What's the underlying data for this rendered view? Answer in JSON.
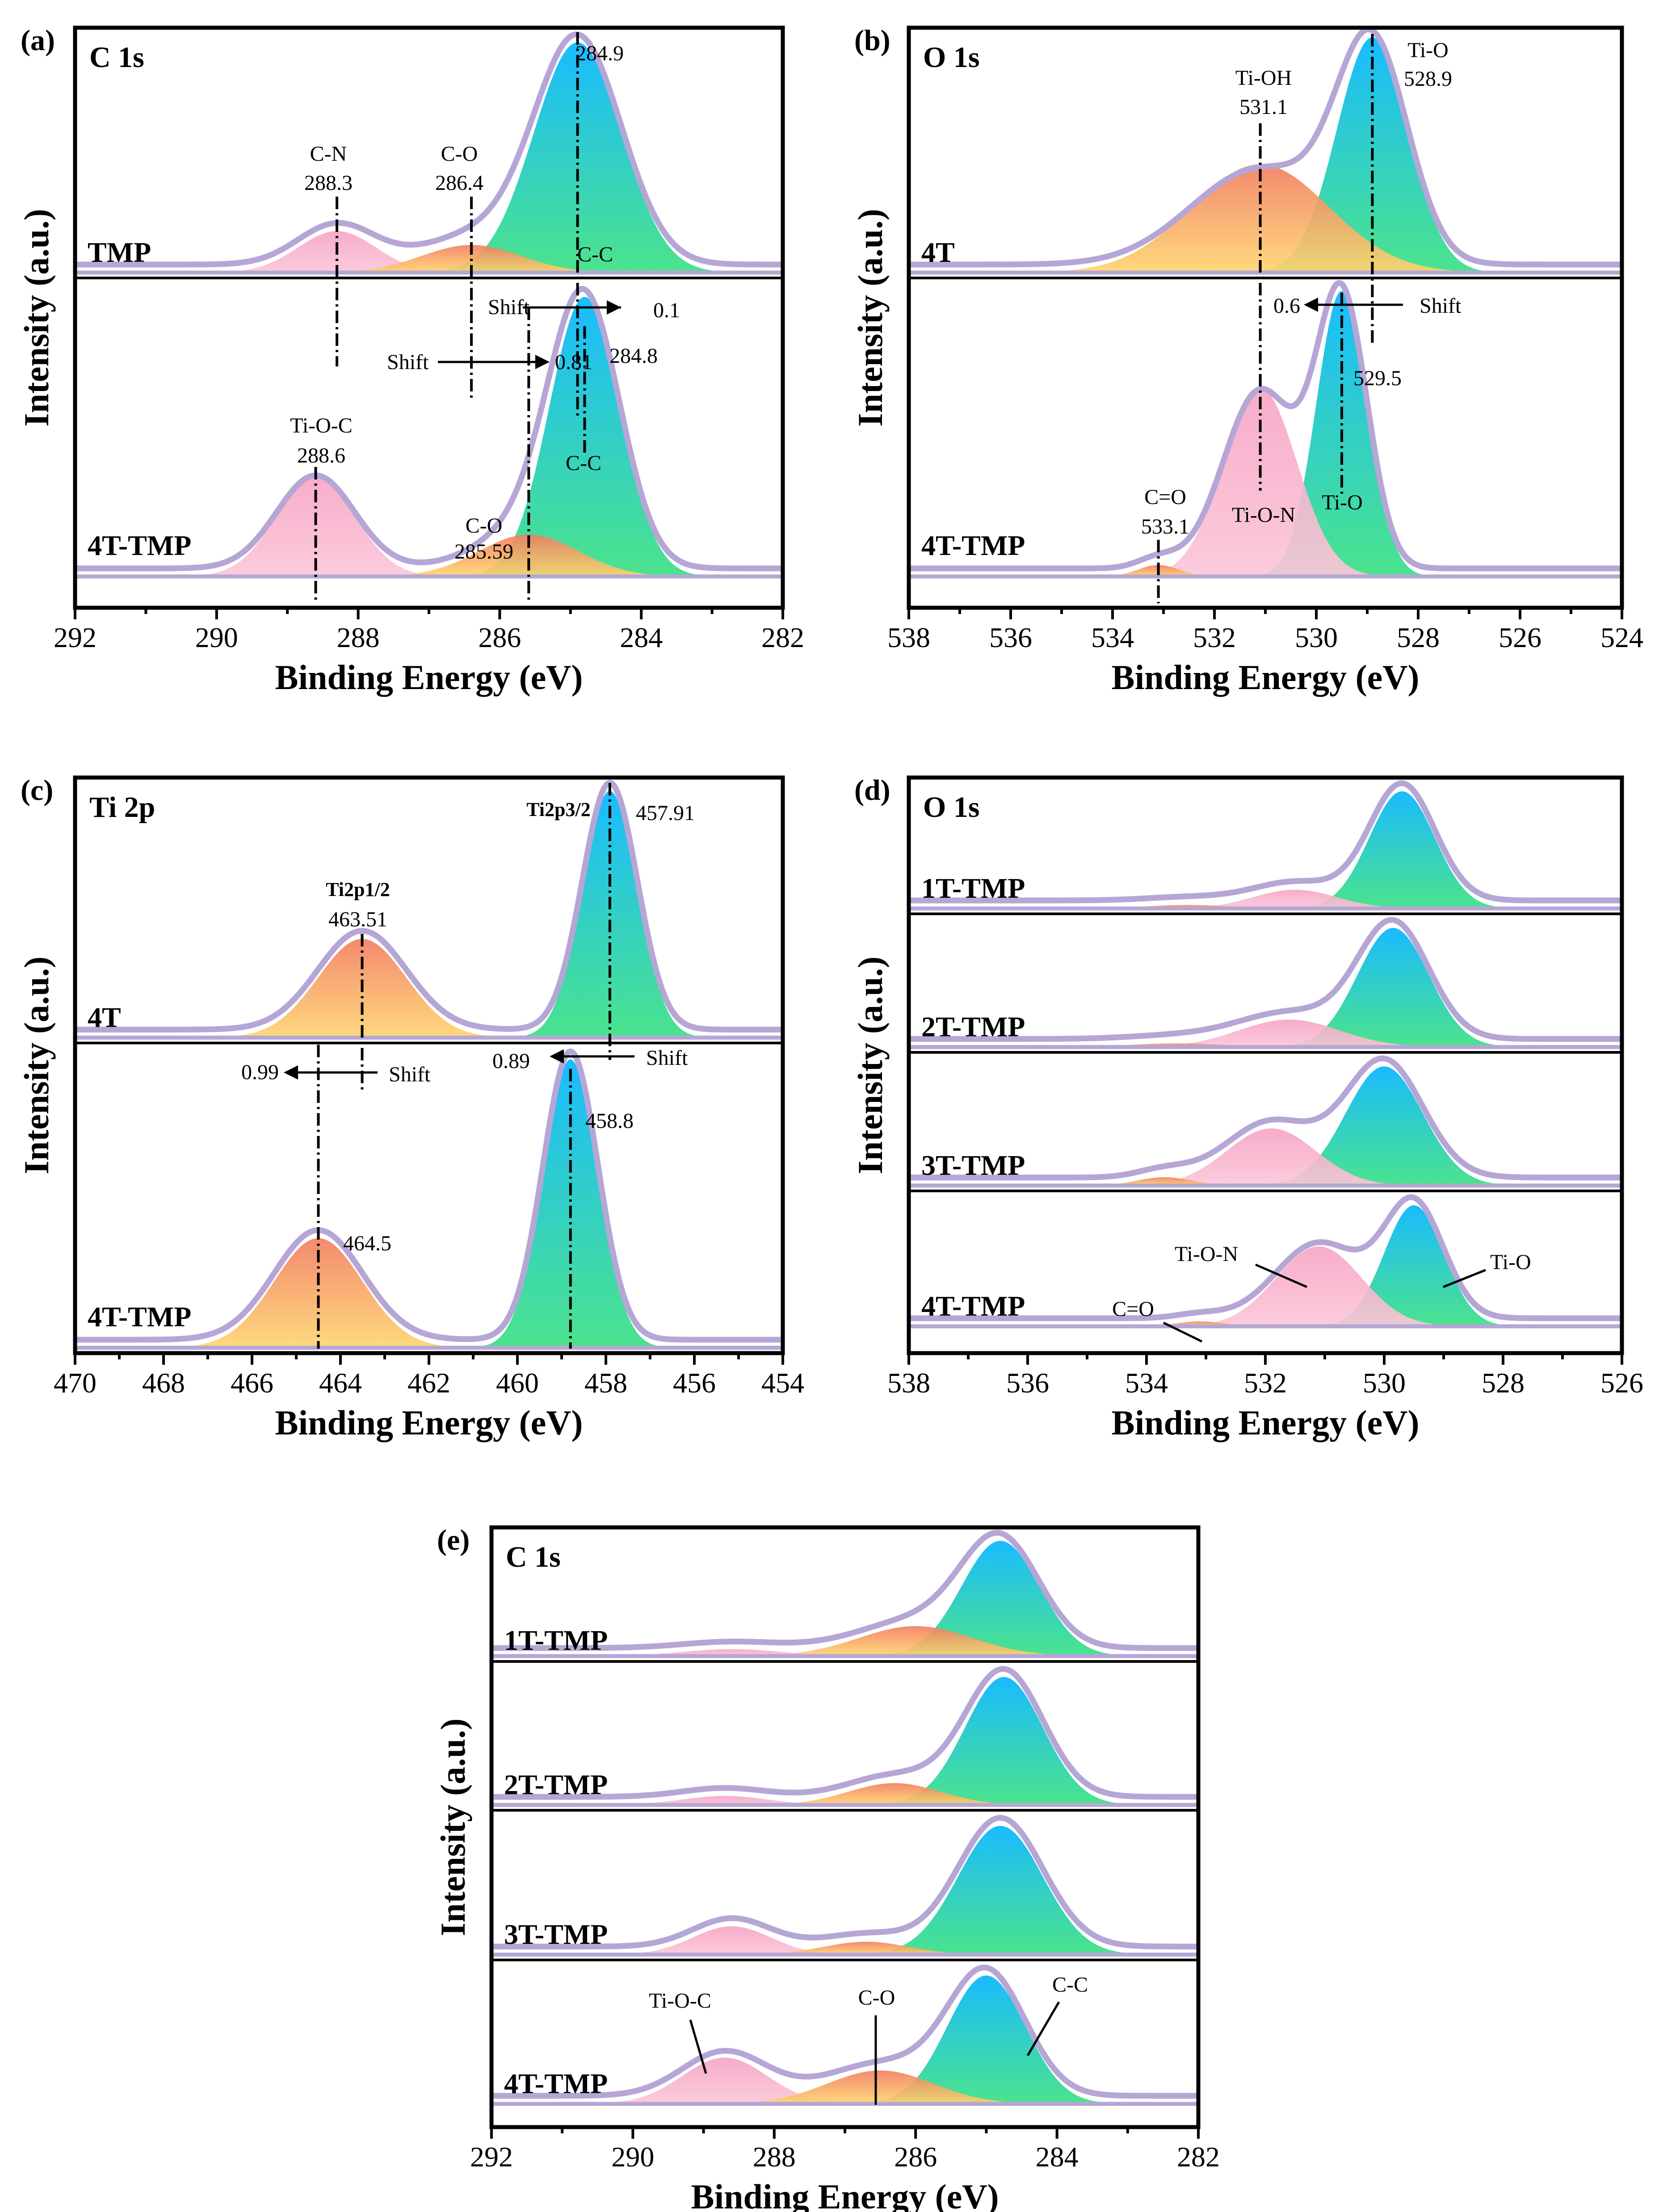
{
  "figure_colors": {
    "ti_o_top": "#00b4ff",
    "ti_o_bottom": "#38e080",
    "pink": "#f8a8c6",
    "orange_top": "#f27d5f",
    "orange_bottom": "#ffd56f",
    "envelope": "#b6a6d6",
    "overlap": "#c9a5ad"
  },
  "chart_data": [
    {
      "panel": "(a)",
      "type": "area",
      "title": "C 1s",
      "xlabel": "Binding Energy (eV)",
      "ylabel": "Intensity (a.u.)",
      "xlim": [
        292,
        282
      ],
      "xticks": [
        292,
        290,
        288,
        286,
        284,
        282
      ],
      "tick_labels": [
        "292",
        "290",
        "288",
        "286",
        "284",
        "282"
      ],
      "stacks": [
        {
          "sample": "TMP",
          "peaks": [
            {
              "name": "C-C",
              "center": 284.9,
              "height": 1.0,
              "width": 0.62,
              "fill": "green",
              "label": "C-C",
              "value_label": "284.9"
            },
            {
              "name": "C-O",
              "center": 286.4,
              "height": 0.12,
              "width": 0.7,
              "fill": "orange",
              "label": "C-O",
              "value_label": "286.4"
            },
            {
              "name": "C-N",
              "center": 288.3,
              "height": 0.18,
              "width": 0.55,
              "fill": "pink",
              "label": "C-N",
              "value_label": "288.3"
            }
          ]
        },
        {
          "sample": "4T-TMP",
          "peaks": [
            {
              "name": "C-C",
              "center": 284.8,
              "height": 1.0,
              "width": 0.5,
              "fill": "green",
              "label": "C-C",
              "value_label": "284.8"
            },
            {
              "name": "C-O",
              "center": 285.59,
              "height": 0.15,
              "width": 0.7,
              "fill": "orange",
              "label": "C-O",
              "value_label": "285.59"
            },
            {
              "name": "Ti-O-C",
              "center": 288.6,
              "height": 0.36,
              "width": 0.55,
              "fill": "pink",
              "label": "Ti-O-C",
              "value_label": "288.6"
            }
          ]
        }
      ],
      "shifts": [
        {
          "label": "Shift",
          "value": "0.1"
        },
        {
          "label": "Shift",
          "value": "0.81"
        }
      ]
    },
    {
      "panel": "(b)",
      "type": "area",
      "title": "O 1s",
      "xlabel": "Binding Energy (eV)",
      "ylabel": "Intensity (a.u.)",
      "xlim": [
        538,
        524
      ],
      "xticks": [
        538,
        536,
        534,
        532,
        530,
        528,
        526,
        524
      ],
      "tick_labels": [
        "538",
        "536",
        "534",
        "532",
        "530",
        "528",
        "526",
        "524"
      ],
      "stacks": [
        {
          "sample": "4T",
          "peaks": [
            {
              "name": "Ti-O",
              "center": 528.9,
              "height": 1.0,
              "width": 0.7,
              "fill": "green",
              "label": "Ti-O",
              "value_label": "528.9"
            },
            {
              "name": "Ti-OH",
              "center": 531.1,
              "height": 0.46,
              "width": 1.35,
              "fill": "orange",
              "label": "Ti-OH",
              "value_label": "531.1"
            }
          ]
        },
        {
          "sample": "4T-TMP",
          "peaks": [
            {
              "name": "Ti-O",
              "center": 529.5,
              "height": 1.0,
              "width": 0.5,
              "fill": "green",
              "label": "Ti-O",
              "value_label": "529.5"
            },
            {
              "name": "Ti-O-N",
              "center": 531.1,
              "height": 0.66,
              "width": 0.72,
              "fill": "pink",
              "label": "Ti-O-N"
            },
            {
              "name": "C=O",
              "center": 533.1,
              "height": 0.04,
              "width": 0.4,
              "fill": "orange",
              "label": "C=O",
              "value_label": "533.1"
            }
          ]
        }
      ],
      "shifts": [
        {
          "label": "Shift",
          "value": "0.6"
        }
      ]
    },
    {
      "panel": "(c)",
      "type": "area",
      "title": "Ti 2p",
      "xlabel": "Binding Energy (eV)",
      "ylabel": "Intensity (a.u.)",
      "xlim": [
        470,
        454
      ],
      "xticks": [
        470,
        468,
        466,
        464,
        462,
        460,
        458,
        456,
        454
      ],
      "tick_labels": [
        "470",
        "468",
        "466",
        "464",
        "462",
        "460",
        "458",
        "456",
        "454"
      ],
      "stacks": [
        {
          "sample": "4T",
          "peaks": [
            {
              "name": "Ti2p3/2",
              "center": 457.91,
              "height": 1.0,
              "width": 0.62,
              "fill": "green",
              "label": "Ti2p3/2",
              "value_label": "457.91"
            },
            {
              "name": "Ti2p1/2",
              "center": 463.51,
              "height": 0.4,
              "width": 1.0,
              "fill": "orange",
              "label": "Ti2p1/2",
              "value_label": "463.51"
            }
          ]
        },
        {
          "sample": "4T-TMP",
          "peaks": [
            {
              "name": "Ti2p3/2",
              "center": 458.8,
              "height": 1.0,
              "width": 0.62,
              "fill": "green",
              "value_label": "458.8"
            },
            {
              "name": "Ti2p1/2",
              "center": 464.5,
              "height": 0.38,
              "width": 1.0,
              "fill": "orange",
              "value_label": "464.5"
            }
          ]
        }
      ],
      "shifts": [
        {
          "label": "Shift",
          "value": "0.99"
        },
        {
          "label": "Shift",
          "value": "0.89"
        }
      ]
    },
    {
      "panel": "(d)",
      "type": "area",
      "title": "O 1s",
      "xlabel": "Binding Energy (eV)",
      "ylabel": "Intensity (a.u.)",
      "xlim": [
        538,
        526
      ],
      "xticks": [
        538,
        536,
        534,
        532,
        530,
        528,
        526
      ],
      "tick_labels": [
        "538",
        "536",
        "534",
        "532",
        "530",
        "528",
        "526"
      ],
      "stacks": [
        {
          "sample": "1T-TMP",
          "peaks": [
            {
              "name": "Ti-O",
              "center": 529.7,
              "height": 1.0,
              "width": 0.55,
              "fill": "green"
            },
            {
              "name": "Ti-O-N",
              "center": 531.5,
              "height": 0.16,
              "width": 0.7,
              "fill": "pink"
            },
            {
              "name": "C=O",
              "center": 533.3,
              "height": 0.03,
              "width": 0.7,
              "fill": "orange"
            }
          ]
        },
        {
          "sample": "2T-TMP",
          "peaks": [
            {
              "name": "Ti-O",
              "center": 529.85,
              "height": 1.0,
              "width": 0.6,
              "fill": "green"
            },
            {
              "name": "Ti-O-N",
              "center": 531.6,
              "height": 0.23,
              "width": 0.85,
              "fill": "pink"
            },
            {
              "name": "C=O",
              "center": 533.5,
              "height": 0.03,
              "width": 0.8,
              "fill": "orange"
            }
          ]
        },
        {
          "sample": "3T-TMP",
          "peaks": [
            {
              "name": "Ti-O",
              "center": 530.0,
              "height": 1.0,
              "width": 0.65,
              "fill": "green"
            },
            {
              "name": "Ti-O-N",
              "center": 531.9,
              "height": 0.48,
              "width": 0.75,
              "fill": "pink"
            },
            {
              "name": "C=O",
              "center": 533.7,
              "height": 0.07,
              "width": 0.45,
              "fill": "orange"
            }
          ]
        },
        {
          "sample": "4T-TMP",
          "peaks": [
            {
              "name": "Ti-O",
              "center": 529.5,
              "height": 1.0,
              "width": 0.5,
              "fill": "green",
              "label": "Ti-O"
            },
            {
              "name": "Ti-O-N",
              "center": 531.1,
              "height": 0.66,
              "width": 0.72,
              "fill": "pink",
              "label": "Ti-O-N"
            },
            {
              "name": "C=O",
              "center": 533.1,
              "height": 0.04,
              "width": 0.4,
              "fill": "orange",
              "label": "C=O"
            }
          ]
        }
      ]
    },
    {
      "panel": "(e)",
      "type": "area",
      "title": "C 1s",
      "xlabel": "Binding Energy (eV)",
      "ylabel": "Intensity (a.u.)",
      "xlim": [
        292,
        282
      ],
      "xticks": [
        292,
        290,
        288,
        286,
        284,
        282
      ],
      "tick_labels": [
        "292",
        "290",
        "288",
        "286",
        "284",
        "282"
      ],
      "stacks": [
        {
          "sample": "1T-TMP",
          "peaks": [
            {
              "name": "C-C",
              "center": 284.8,
              "height": 1.0,
              "width": 0.55,
              "fill": "green"
            },
            {
              "name": "C-O",
              "center": 286.0,
              "height": 0.26,
              "width": 0.8,
              "fill": "orange"
            },
            {
              "name": "Ti-O-C",
              "center": 288.6,
              "height": 0.06,
              "width": 0.7,
              "fill": "pink"
            }
          ]
        },
        {
          "sample": "2T-TMP",
          "peaks": [
            {
              "name": "C-C",
              "center": 284.75,
              "height": 1.0,
              "width": 0.55,
              "fill": "green"
            },
            {
              "name": "C-O",
              "center": 286.3,
              "height": 0.17,
              "width": 0.65,
              "fill": "orange"
            },
            {
              "name": "Ti-O-C",
              "center": 288.7,
              "height": 0.07,
              "width": 0.6,
              "fill": "pink"
            }
          ]
        },
        {
          "sample": "3T-TMP",
          "peaks": [
            {
              "name": "C-C",
              "center": 284.8,
              "height": 1.0,
              "width": 0.6,
              "fill": "green"
            },
            {
              "name": "C-O",
              "center": 286.7,
              "height": 0.1,
              "width": 0.6,
              "fill": "orange"
            },
            {
              "name": "Ti-O-C",
              "center": 288.6,
              "height": 0.22,
              "width": 0.55,
              "fill": "pink"
            }
          ]
        },
        {
          "sample": "4T-TMP",
          "peaks": [
            {
              "name": "C-C",
              "center": 285.0,
              "height": 1.0,
              "width": 0.55,
              "fill": "green",
              "label": "C-C"
            },
            {
              "name": "C-O",
              "center": 286.5,
              "height": 0.26,
              "width": 0.75,
              "fill": "orange",
              "label": "C-O"
            },
            {
              "name": "Ti-O-C",
              "center": 288.7,
              "height": 0.36,
              "width": 0.6,
              "fill": "pink",
              "label": "Ti-O-C"
            }
          ]
        }
      ]
    }
  ]
}
